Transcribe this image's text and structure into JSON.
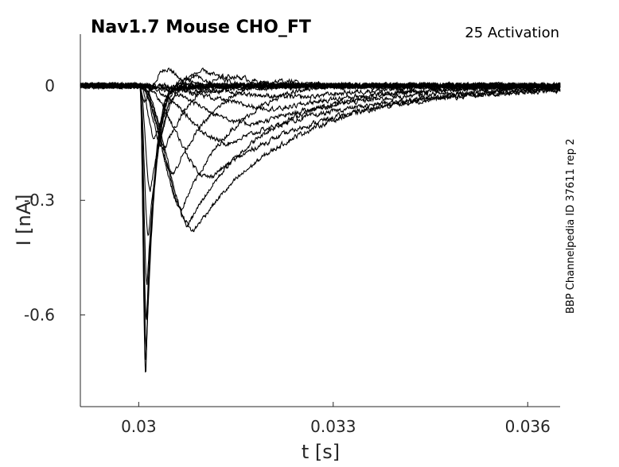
{
  "chart_data": {
    "type": "line",
    "title": "Nav1.7  Mouse  CHO_FT",
    "subtitle": "25  Activation",
    "side_label": "BBP Channelpedia ID 37611 rep 2",
    "xlabel": "t [s]",
    "ylabel": "I [nA]",
    "xlim": [
      0.0291,
      0.0365
    ],
    "ylim": [
      -0.84,
      0.135
    ],
    "x_ticks": [
      0.03,
      0.033,
      0.036
    ],
    "x_tick_labels": [
      "0.03",
      "0.033",
      "0.036"
    ],
    "y_ticks": [
      0,
      -0.3,
      -0.6
    ],
    "y_tick_labels": [
      "0",
      "-0.3",
      "-0.6"
    ],
    "grid": false,
    "line_color": "#000000",
    "baseline": 0,
    "noise_amplitude": 0.006,
    "series": [
      {
        "onset": 0.03002,
        "peak_t": 0.03009,
        "peak": -0.05,
        "overshoot": 0.05,
        "tau": 0.00015
      },
      {
        "onset": 0.03002,
        "peak_t": 0.03011,
        "peak": -0.76,
        "overshoot": 0.025,
        "tau": 0.00012
      },
      {
        "onset": 0.03002,
        "peak_t": 0.03011,
        "peak": -0.73,
        "overshoot": 0.03,
        "tau": 0.00013
      },
      {
        "onset": 0.03002,
        "peak_t": 0.03012,
        "peak": -0.69,
        "overshoot": 0.035,
        "tau": 0.00014
      },
      {
        "onset": 0.03002,
        "peak_t": 0.03012,
        "peak": -0.62,
        "overshoot": 0.04,
        "tau": 0.00015
      },
      {
        "onset": 0.03002,
        "peak_t": 0.03013,
        "peak": -0.52,
        "overshoot": 0.045,
        "tau": 0.00017
      },
      {
        "onset": 0.03002,
        "peak_t": 0.03015,
        "peak": -0.4,
        "overshoot": 0.048,
        "tau": 0.0002
      },
      {
        "onset": 0.03002,
        "peak_t": 0.03018,
        "peak": -0.28,
        "overshoot": 0.05,
        "tau": 0.00025
      },
      {
        "onset": 0.03003,
        "peak_t": 0.03025,
        "peak": -0.14,
        "overshoot": 0.05,
        "tau": 0.0003
      },
      {
        "onset": 0.03003,
        "peak_t": 0.0304,
        "peak": -0.17,
        "overshoot": 0.04,
        "tau": 0.0004
      },
      {
        "onset": 0.03003,
        "peak_t": 0.03055,
        "peak": -0.23,
        "overshoot": 0.03,
        "tau": 0.0006
      },
      {
        "onset": 0.03003,
        "peak_t": 0.03068,
        "peak": -0.32,
        "overshoot": 0.02,
        "tau": 0.0008
      },
      {
        "onset": 0.03003,
        "peak_t": 0.03078,
        "peak": -0.36,
        "overshoot": 0.0,
        "tau": 0.0011
      },
      {
        "onset": 0.03003,
        "peak_t": 0.03085,
        "peak": -0.38,
        "overshoot": 0.0,
        "tau": 0.0015
      },
      {
        "onset": 0.03004,
        "peak_t": 0.0311,
        "peak": -0.24,
        "overshoot": 0.0,
        "tau": 0.0018
      },
      {
        "onset": 0.03004,
        "peak_t": 0.0314,
        "peak": -0.15,
        "overshoot": 0.0,
        "tau": 0.002
      },
      {
        "onset": 0.03004,
        "peak_t": 0.0318,
        "peak": -0.1,
        "overshoot": 0.0,
        "tau": 0.0018
      },
      {
        "onset": 0.03004,
        "peak_t": 0.0322,
        "peak": -0.06,
        "overshoot": 0.0,
        "tau": 0.0015
      },
      {
        "onset": 0.03005,
        "peak_t": 0.0326,
        "peak": -0.03,
        "overshoot": 0.0,
        "tau": 0.0012
      },
      {
        "onset": 0.03005,
        "peak_t": 0.031,
        "peak": -0.015,
        "overshoot": 0.0,
        "tau": 0.001
      }
    ]
  }
}
